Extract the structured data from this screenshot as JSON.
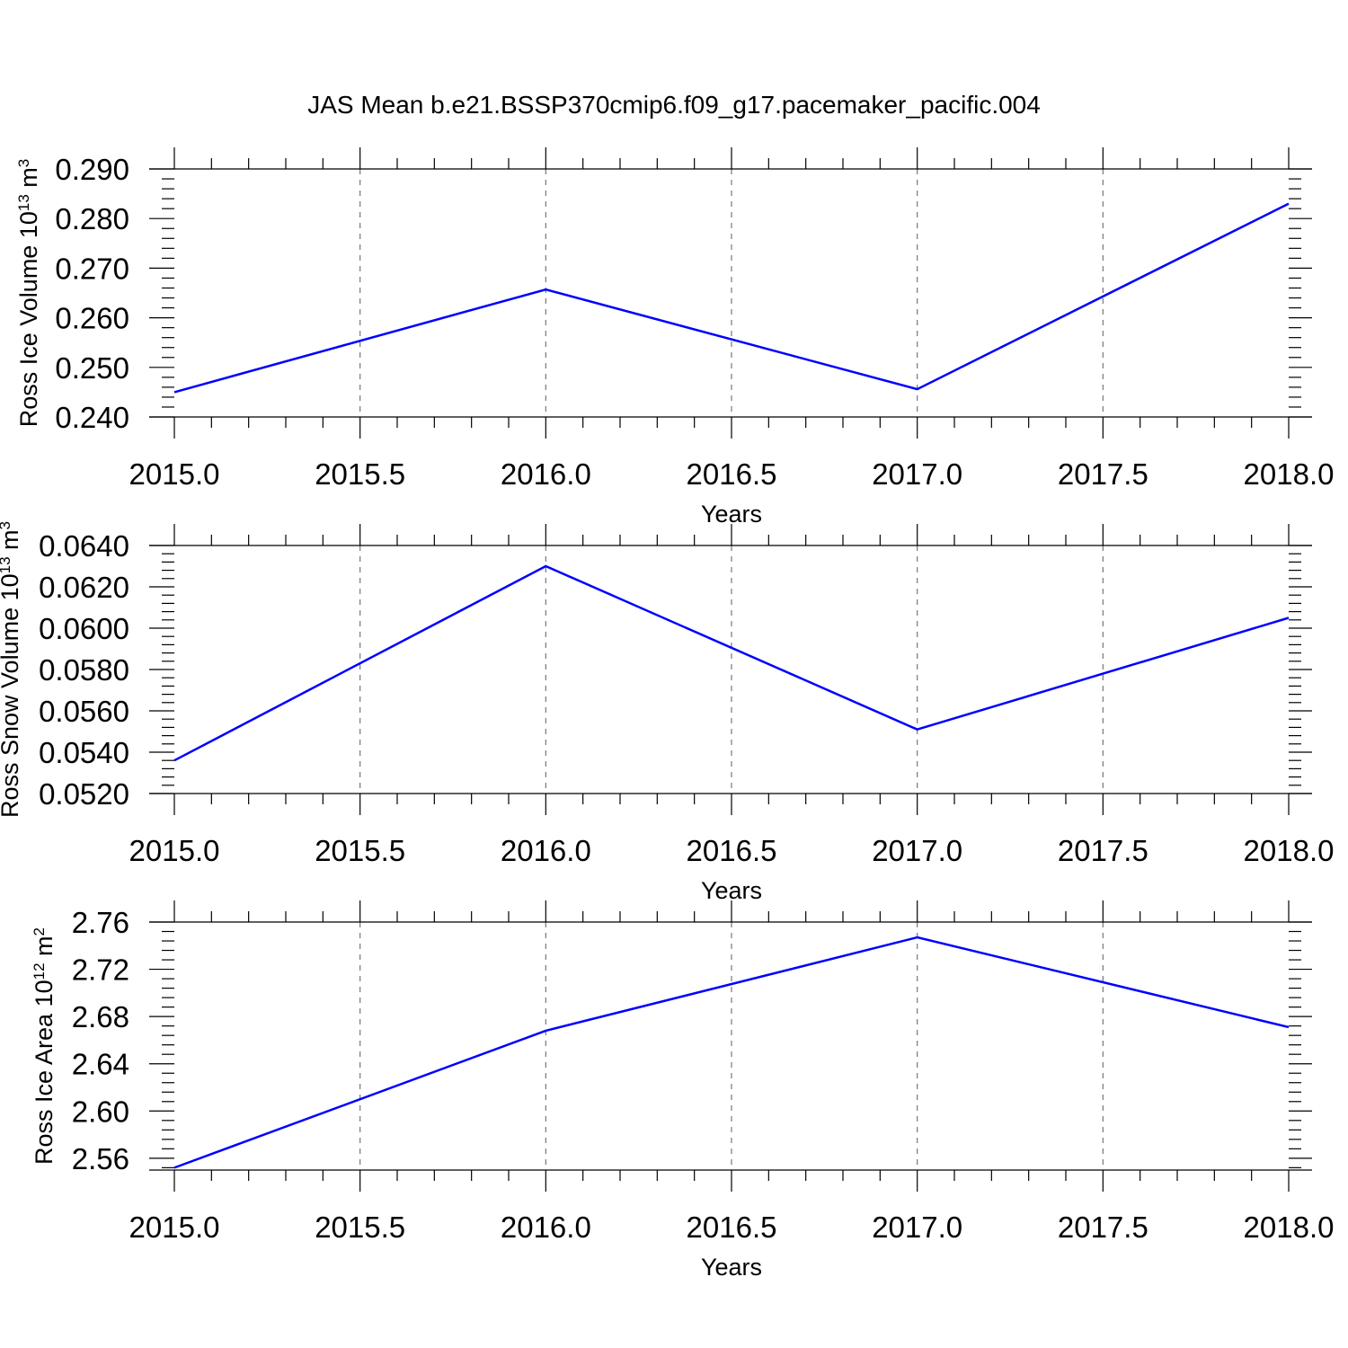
{
  "title": "JAS Mean b.e21.BSSP370cmip6.f09_g17.pacemaker_pacific.004",
  "colors": {
    "line": "#0000ff",
    "grid": "#777777",
    "axis": "#000000"
  },
  "chart_data": [
    {
      "type": "line",
      "xlabel": "Years",
      "ylabel": "Ross Ice Volume",
      "yunit_base": "10",
      "yunit_exp": "13",
      "yunit_tail": "m",
      "yunit_tail_exp": "3",
      "xlim": [
        2015.0,
        2018.0
      ],
      "ylim": [
        0.24,
        0.29
      ],
      "x_ticks": [
        "2015.0",
        "2015.5",
        "2016.0",
        "2016.5",
        "2017.0",
        "2017.5",
        "2018.0"
      ],
      "y_ticks": [
        "0.240",
        "0.250",
        "0.260",
        "0.270",
        "0.280",
        "0.290"
      ],
      "x": [
        2015,
        2016,
        2017,
        2018
      ],
      "series": [
        {
          "values": [
            0.245,
            0.2657,
            0.2456,
            0.283
          ]
        }
      ],
      "grid": "vertical dashed at major x ticks"
    },
    {
      "type": "line",
      "xlabel": "Years",
      "ylabel": "Ross Snow Volume",
      "yunit_base": "10",
      "yunit_exp": "13",
      "yunit_tail": "m",
      "yunit_tail_exp": "3",
      "xlim": [
        2015.0,
        2018.0
      ],
      "ylim": [
        0.052,
        0.064
      ],
      "x_ticks": [
        "2015.0",
        "2015.5",
        "2016.0",
        "2016.5",
        "2017.0",
        "2017.5",
        "2018.0"
      ],
      "y_ticks": [
        "0.0520",
        "0.0540",
        "0.0560",
        "0.0580",
        "0.0600",
        "0.0620",
        "0.0640"
      ],
      "x": [
        2015,
        2016,
        2017,
        2018
      ],
      "series": [
        {
          "values": [
            0.0536,
            0.063,
            0.0551,
            0.0605
          ]
        }
      ],
      "grid": "vertical dashed at major x ticks"
    },
    {
      "type": "line",
      "xlabel": "Years",
      "ylabel": "Ross Ice Area",
      "yunit_base": "10",
      "yunit_exp": "12",
      "yunit_tail": "m",
      "yunit_tail_exp": "2",
      "xlim": [
        2015.0,
        2018.0
      ],
      "ylim": [
        2.55,
        2.76
      ],
      "x_ticks": [
        "2015.0",
        "2015.5",
        "2016.0",
        "2016.5",
        "2017.0",
        "2017.5",
        "2018.0"
      ],
      "y_ticks": [
        "2.56",
        "2.60",
        "2.64",
        "2.68",
        "2.72",
        "2.76"
      ],
      "x": [
        2015,
        2016,
        2017,
        2018
      ],
      "series": [
        {
          "values": [
            2.552,
            2.668,
            2.747,
            2.671
          ]
        }
      ],
      "grid": "vertical dashed at major x ticks"
    }
  ]
}
